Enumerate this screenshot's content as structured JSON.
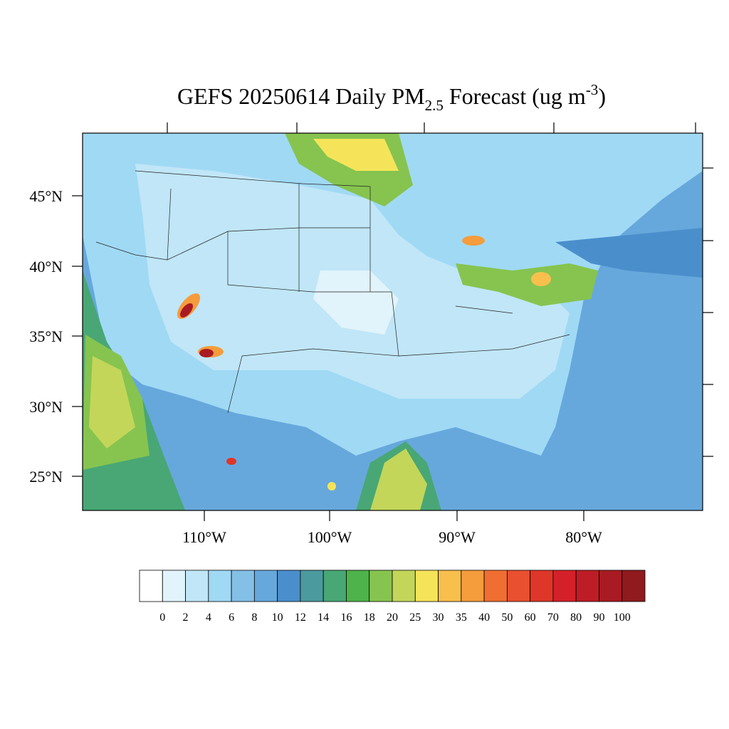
{
  "title": {
    "main": "GEFS 20250614 Daily PM",
    "subscript": "2.5",
    "middle": " Forecast (ug m",
    "superscript": "-3",
    "end": ")"
  },
  "lat_labels": [
    "45°N",
    "40°N",
    "35°N",
    "30°N",
    "25°N"
  ],
  "lon_labels": [
    "110°W",
    "100°W",
    "90°W",
    "80°W"
  ],
  "colorbar": {
    "colors": [
      "#ffffff",
      "#e1f3fb",
      "#c0e6f7",
      "#a0d9f4",
      "#84bfe6",
      "#66a8dc",
      "#4a8fcc",
      "#4a9a9e",
      "#48a775",
      "#4db34a",
      "#86c44f",
      "#c3d65a",
      "#f5e45a",
      "#f8bf4d",
      "#f59c3d",
      "#f06e31",
      "#e85030",
      "#de3629",
      "#d42029",
      "#be1c26",
      "#a91b22",
      "#901a1e"
    ],
    "labels": [
      "0",
      "2",
      "4",
      "6",
      "8",
      "10",
      "12",
      "14",
      "16",
      "18",
      "20",
      "25",
      "30",
      "35",
      "40",
      "50",
      "60",
      "70",
      "80",
      "90",
      "100"
    ]
  }
}
